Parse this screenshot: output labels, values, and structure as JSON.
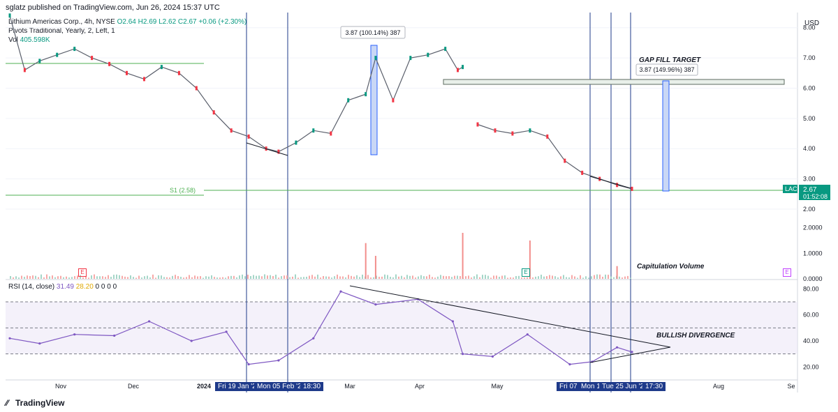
{
  "header": {
    "published": "sglatz published on TradingView.com, Jun 26, 2024 15:37 UTC"
  },
  "legend": {
    "symbol_line": "Lithium Americas Corp., 4h, NYSE",
    "ohlc": "O2.64 H2.69 L2.62 C2.67 +0.06 (+2.30%)",
    "pivots": "Pivots Traditional, Yearly, 2, Left, 1",
    "vol_label": "Vol",
    "vol_value": "405.598K"
  },
  "rsi_legend": {
    "label": "RSI (14, close)",
    "value1": "31.49",
    "value2": "28.20",
    "zeros": "0 0 0 0"
  },
  "annotations": {
    "measure_left": "3.87 (100.14%) 387",
    "measure_right": "3.87 (149.96%) 387",
    "gap_fill": "GAP FILL TARGET",
    "capitulation": "Capitulation Volume",
    "divergence": "BULLISH DIVERGENCE",
    "pivot_s1": "S1 (2.58)",
    "earnings_marker": "E"
  },
  "price_axis": {
    "currency": "USD",
    "ticker": "LAC",
    "last_price": "2.67",
    "countdown": "01:52:08"
  },
  "time_badges": [
    "Fri 19 Jan '24",
    "Mon 05 Feb '24",
    "18:30",
    "Fri 07",
    "Mon 1",
    "Tue 25 Jun '24",
    "17:30"
  ],
  "footer": {
    "brand": "TradingView"
  },
  "colors": {
    "up": "#089981",
    "down": "#f23645",
    "rsi": "#7e57c2",
    "rsi_ma": "#f5c242",
    "vline": "#1e3a8a",
    "pivot": "#4caf50",
    "badge": "#1e3a8a"
  },
  "chart_data": [
    {
      "type": "line",
      "name": "price",
      "ylabel": "USD",
      "ylim": [
        2.0,
        8.5
      ],
      "yticks": [
        "8.00",
        "7.00",
        "6.00",
        "5.00",
        "4.00",
        "3.00",
        "2.00"
      ],
      "xticks": [
        "Nov",
        "Dec",
        "2024",
        "Mar",
        "Apr",
        "May",
        "Aug",
        "Se"
      ],
      "x": [
        "Oct 20",
        "Oct 26",
        "Nov 01",
        "Nov 08",
        "Nov 15",
        "Nov 22",
        "Nov 29",
        "Dec 06",
        "Dec 13",
        "Dec 20",
        "Dec 27",
        "Jan 03",
        "Jan 10",
        "Jan 17",
        "Jan 24",
        "Jan 31",
        "Feb 05",
        "Feb 12",
        "Feb 19",
        "Feb 26",
        "Mar 04",
        "Mar 11",
        "Mar 15",
        "Mar 22",
        "Mar 29",
        "Apr 05",
        "Apr 12",
        "Apr 17",
        "Apr 19",
        "Apr 25",
        "May 02",
        "May 09",
        "May 16",
        "May 23",
        "May 30",
        "Jun 06",
        "Jun 13",
        "Jun 20",
        "Jun 26"
      ],
      "series": [
        {
          "values": [
            8.4,
            6.6,
            6.9,
            7.1,
            7.3,
            7.0,
            6.8,
            6.5,
            6.3,
            6.7,
            6.5,
            6.0,
            5.2,
            4.6,
            4.4,
            4.0,
            3.9,
            4.2,
            4.6,
            4.5,
            5.6,
            5.8,
            7.0,
            5.6,
            7.0,
            7.1,
            7.3,
            6.6,
            6.7,
            4.8,
            4.6,
            4.5,
            4.6,
            4.4,
            3.6,
            3.2,
            3.0,
            2.8,
            2.67
          ]
        }
      ],
      "levels": [
        {
          "name": "gap-fill-zone",
          "from": 6.38,
          "to": 6.5
        },
        {
          "name": "S1 (2.58)",
          "value": 2.58
        }
      ]
    },
    {
      "type": "bar",
      "name": "volume",
      "ylim": [
        0,
        3.0
      ],
      "yticks": [
        "2.0000",
        "1.0000",
        "0.0000"
      ],
      "spikes": [
        {
          "x": "Mar 11",
          "value": 1.4
        },
        {
          "x": "Mar 15",
          "value": 0.9
        },
        {
          "x": "Apr 19",
          "value": 1.8
        },
        {
          "x": "May 16",
          "value": 1.5
        },
        {
          "x": "Jun 20",
          "value": 0.5
        }
      ]
    },
    {
      "type": "line",
      "name": "RSI (14, close)",
      "ylim": [
        10,
        85
      ],
      "yticks": [
        "80.00",
        "60.00",
        "40.00",
        "20.00"
      ],
      "bands": [
        30,
        50,
        70
      ],
      "x": [
        "Oct 20",
        "Nov 01",
        "Nov 15",
        "Dec 01",
        "Dec 15",
        "Jan 01",
        "Jan 15",
        "Jan 24",
        "Feb 05",
        "Feb 19",
        "Mar 01",
        "Mar 15",
        "Apr 01",
        "Apr 15",
        "Apr 19",
        "May 01",
        "May 15",
        "Jun 01",
        "Jun 10",
        "Jun 20",
        "Jun 26"
      ],
      "series": [
        {
          "values": [
            42,
            38,
            45,
            44,
            55,
            40,
            47,
            22,
            25,
            42,
            78,
            68,
            72,
            55,
            30,
            28,
            45,
            22,
            24,
            35,
            31.49
          ]
        }
      ]
    }
  ]
}
